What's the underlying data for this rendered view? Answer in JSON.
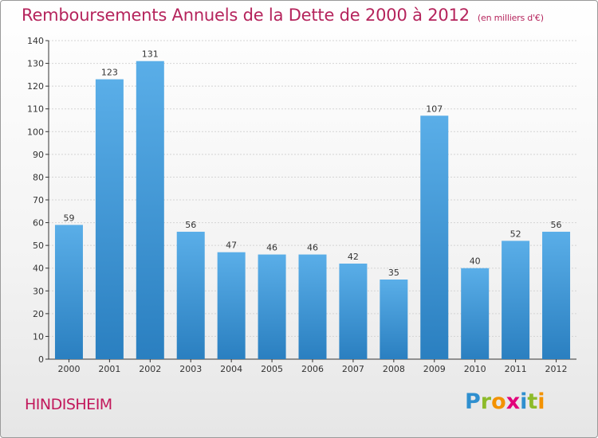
{
  "header": {
    "title": "Remboursements Annuels de la Dette de 2000 à 2012",
    "subtitle": "(en milliers d'€)"
  },
  "footer": {
    "city": "HINDISHEIM",
    "logo_letters": [
      "P",
      "r",
      "o",
      "x",
      "i",
      "t",
      "i"
    ]
  },
  "colors": {
    "bar_top": "#5aaee8",
    "bar_bottom": "#2a7fc0",
    "title": "#b5245c",
    "axis": "#333333"
  },
  "chart_data": {
    "type": "bar",
    "categories": [
      "2000",
      "2001",
      "2002",
      "2003",
      "2004",
      "2005",
      "2006",
      "2007",
      "2008",
      "2009",
      "2010",
      "2011",
      "2012"
    ],
    "values": [
      59,
      123,
      131,
      56,
      47,
      46,
      46,
      42,
      35,
      107,
      40,
      52,
      56
    ],
    "ylim": [
      0,
      140
    ],
    "yticks": [
      0,
      10,
      20,
      30,
      40,
      50,
      60,
      70,
      80,
      90,
      100,
      110,
      120,
      130,
      140
    ],
    "grid": true,
    "legend": "none"
  }
}
